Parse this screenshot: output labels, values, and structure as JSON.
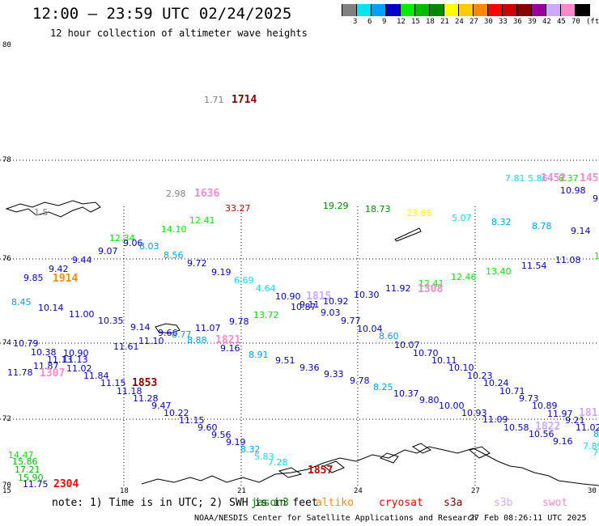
{
  "header": {
    "title": "12:00 — 23:59 UTC 02/24/2025",
    "subtitle": "12 hour collection of altimeter wave heights"
  },
  "legend": {
    "labels": [
      "3",
      "6",
      "9",
      "12",
      "15",
      "18",
      "21",
      "24",
      "27",
      "30",
      "33",
      "36",
      "39",
      "42",
      "45",
      "70",
      "(ft)"
    ],
    "colors": [
      "#808080",
      "#00e5ee",
      "#00a0ff",
      "#0000cd",
      "#00ee00",
      "#00bb00",
      "#008800",
      "#ffff00",
      "#ffcc00",
      "#ff8800",
      "#ff0000",
      "#cc0000",
      "#880000",
      "#990099",
      "#ccaaff",
      "#ff88cc",
      "#000000"
    ]
  },
  "axes": {
    "lat_labels": [
      "80",
      "78",
      "76",
      "74",
      "72",
      "70"
    ],
    "lon_labels": [
      "15",
      "18",
      "21",
      "24",
      "27",
      "30"
    ]
  },
  "map_labels": [
    {
      "t": "1.71",
      "c": "#808080"
    },
    {
      "t": "1714",
      "c": "#880000",
      "b": true
    },
    {
      "t": "2.98",
      "c": "#808080"
    },
    {
      "t": "1636",
      "c": "#ff88cc",
      "b": true
    },
    {
      "t": "33.27",
      "c": "#cc0000"
    },
    {
      "t": "19.29",
      "c": "#008800"
    },
    {
      "t": "18.73",
      "c": "#008800"
    },
    {
      "t": "23.66",
      "c": "#ffff00"
    },
    {
      "t": "5.07",
      "c": "#00e5ee"
    },
    {
      "t": "7.81",
      "c": "#00e5ee"
    },
    {
      "t": "5.86",
      "c": "#00e5ee"
    },
    {
      "t": "1452",
      "c": "#ff88cc",
      "b": true
    },
    {
      "t": "8.37",
      "c": "#00ee00"
    },
    {
      "t": "145",
      "c": "#ff88cc",
      "b": true
    },
    {
      "t": "10.98",
      "c": "#0000cd"
    },
    {
      "t": "9.",
      "c": "#0000cd"
    },
    {
      "t": "1.5",
      "c": "#808080"
    },
    {
      "t": "12.41",
      "c": "#00ee00"
    },
    {
      "t": "14.10",
      "c": "#00ee00"
    },
    {
      "t": "12.34",
      "c": "#00ee00"
    },
    {
      "t": "9.06",
      "c": "#0000cd"
    },
    {
      "t": "8.03",
      "c": "#00a0ff"
    },
    {
      "t": "9.07",
      "c": "#0000cd"
    },
    {
      "t": "8.56",
      "c": "#00a0ff"
    },
    {
      "t": "8.32",
      "c": "#00a0ff"
    },
    {
      "t": "8.78",
      "c": "#00a0ff"
    },
    {
      "t": "9.14",
      "c": "#0000cd"
    },
    {
      "t": "9.44",
      "c": "#0000cd"
    },
    {
      "t": "9.72",
      "c": "#0000cd"
    },
    {
      "t": "9.42",
      "c": "#0000cd"
    },
    {
      "t": "9.19",
      "c": "#0000cd"
    },
    {
      "t": "9.85",
      "c": "#0000cd"
    },
    {
      "t": "1914",
      "c": "#ff8800",
      "b": true
    },
    {
      "t": "6.69",
      "c": "#00e5ee"
    },
    {
      "t": "13.40",
      "c": "#00ee00"
    },
    {
      "t": "11.54",
      "c": "#0000cd"
    },
    {
      "t": "11.08",
      "c": "#0000cd"
    },
    {
      "t": "1",
      "c": "#00ee00"
    },
    {
      "t": "12.41",
      "c": "#00ee00"
    },
    {
      "t": "12.46",
      "c": "#00ee00"
    },
    {
      "t": "4.64",
      "c": "#00e5ee"
    },
    {
      "t": "10.90",
      "c": "#0000cd"
    },
    {
      "t": "1815",
      "c": "#ccaaff",
      "b": true
    },
    {
      "t": "10.30",
      "c": "#0000cd"
    },
    {
      "t": "11.92",
      "c": "#0000cd"
    },
    {
      "t": "1308",
      "c": "#ff88cc",
      "b": true
    },
    {
      "t": "8.45",
      "c": "#00a0ff"
    },
    {
      "t": "10.14",
      "c": "#0000cd"
    },
    {
      "t": "9.11",
      "c": "#0000cd"
    },
    {
      "t": "10.92",
      "c": "#0000cd"
    },
    {
      "t": "10.87",
      "c": "#0000cd"
    },
    {
      "t": "11.00",
      "c": "#0000cd"
    },
    {
      "t": "13.72",
      "c": "#00ee00"
    },
    {
      "t": "9.03",
      "c": "#0000cd"
    },
    {
      "t": "10.35",
      "c": "#0000cd"
    },
    {
      "t": "9.78",
      "c": "#0000cd"
    },
    {
      "t": "9.77",
      "c": "#0000cd"
    },
    {
      "t": "9.14",
      "c": "#0000cd"
    },
    {
      "t": "11.07",
      "c": "#0000cd"
    },
    {
      "t": "10.04",
      "c": "#0000cd"
    },
    {
      "t": "9.66",
      "c": "#0000cd"
    },
    {
      "t": "8.77",
      "c": "#00a0ff"
    },
    {
      "t": "8.60",
      "c": "#00a0ff"
    },
    {
      "t": "11.10",
      "c": "#0000cd"
    },
    {
      "t": "8.88",
      "c": "#00a0ff"
    },
    {
      "t": "1821",
      "c": "#ff88cc",
      "b": true
    },
    {
      "t": "10.07",
      "c": "#0000cd"
    },
    {
      "t": "10.79",
      "c": "#0000cd"
    },
    {
      "t": "11.61",
      "c": "#0000cd"
    },
    {
      "t": "9.16",
      "c": "#0000cd"
    },
    {
      "t": "10.70",
      "c": "#0000cd"
    },
    {
      "t": "10.38",
      "c": "#0000cd"
    },
    {
      "t": "10.90",
      "c": "#0000cd"
    },
    {
      "t": "8.91",
      "c": "#00a0ff"
    },
    {
      "t": "10.11",
      "c": "#0000cd"
    },
    {
      "t": "11.13",
      "c": "#0000cd"
    },
    {
      "t": "11.13",
      "c": "#0000cd"
    },
    {
      "t": "9.51",
      "c": "#0000cd"
    },
    {
      "t": "11.87",
      "c": "#0000cd"
    },
    {
      "t": "11.02",
      "c": "#0000cd"
    },
    {
      "t": "9.36",
      "c": "#0000cd"
    },
    {
      "t": "10.10",
      "c": "#0000cd"
    },
    {
      "t": "11.78",
      "c": "#0000cd"
    },
    {
      "t": "1307",
      "c": "#ff88cc",
      "b": true
    },
    {
      "t": "11.84",
      "c": "#0000cd"
    },
    {
      "t": "9.33",
      "c": "#0000cd"
    },
    {
      "t": "10.23",
      "c": "#0000cd"
    },
    {
      "t": "11.15",
      "c": "#0000cd"
    },
    {
      "t": "1853",
      "c": "#880000",
      "b": true
    },
    {
      "t": "9.78",
      "c": "#0000cd"
    },
    {
      "t": "10.24",
      "c": "#0000cd"
    },
    {
      "t": "8.25",
      "c": "#00a0ff"
    },
    {
      "t": "11.18",
      "c": "#0000cd"
    },
    {
      "t": "10.71",
      "c": "#0000cd"
    },
    {
      "t": "10.37",
      "c": "#0000cd"
    },
    {
      "t": "11.28",
      "c": "#0000cd"
    },
    {
      "t": "9.73",
      "c": "#0000cd"
    },
    {
      "t": "9.80",
      "c": "#0000cd"
    },
    {
      "t": "9.47",
      "c": "#0000cd"
    },
    {
      "t": "10.00",
      "c": "#0000cd"
    },
    {
      "t": "10.89",
      "c": "#0000cd"
    },
    {
      "t": "10.22",
      "c": "#0000cd"
    },
    {
      "t": "10.93",
      "c": "#0000cd"
    },
    {
      "t": "11.97",
      "c": "#0000cd"
    },
    {
      "t": "181",
      "c": "#ccaaff",
      "b": true
    },
    {
      "t": "11.15",
      "c": "#0000cd"
    },
    {
      "t": "11.09",
      "c": "#0000cd"
    },
    {
      "t": "9.21",
      "c": "#0000cd"
    },
    {
      "t": "9.60",
      "c": "#0000cd"
    },
    {
      "t": "10.58",
      "c": "#0000cd"
    },
    {
      "t": "1822",
      "c": "#ccaaff",
      "b": true
    },
    {
      "t": "11.02",
      "c": "#0000cd"
    },
    {
      "t": "9.56",
      "c": "#0000cd"
    },
    {
      "t": "10.56",
      "c": "#0000cd"
    },
    {
      "t": "8",
      "c": "#00a0ff"
    },
    {
      "t": "9.19",
      "c": "#0000cd"
    },
    {
      "t": "9.16",
      "c": "#0000cd"
    },
    {
      "t": "7.89",
      "c": "#00e5ee"
    },
    {
      "t": "8.32",
      "c": "#00a0ff"
    },
    {
      "t": "7",
      "c": "#00e5ee"
    },
    {
      "t": "14.47",
      "c": "#00ee00"
    },
    {
      "t": "5.83",
      "c": "#00e5ee"
    },
    {
      "t": "15.86",
      "c": "#00bb00"
    },
    {
      "t": "7.28",
      "c": "#00e5ee"
    },
    {
      "t": "17.21",
      "c": "#00bb00"
    },
    {
      "t": "15.90",
      "c": "#00bb00"
    },
    {
      "t": "1857",
      "c": "#cc0000",
      "b": true
    },
    {
      "t": "11.75",
      "c": "#0000cd"
    },
    {
      "t": "2304",
      "c": "#ff0000",
      "b": true
    }
  ],
  "footer": {
    "note": "note: 1) Time is in UTC; 2) SWH is in feet",
    "satellites": [
      {
        "name": "jason3",
        "color": "#008800"
      },
      {
        "name": "altiko",
        "color": "#ff8800"
      },
      {
        "name": "cryosat",
        "color": "#ff0000"
      },
      {
        "name": "s3a",
        "color": "#880000"
      },
      {
        "name": "s3b",
        "color": "#ccaaff"
      },
      {
        "name": "swot",
        "color": "#ff88cc"
      }
    ],
    "credit": "NOAA/NESDIS Center for Satellite Applications and Research",
    "timestamp": "27 Feb 08:26:11 UTC 2025"
  }
}
